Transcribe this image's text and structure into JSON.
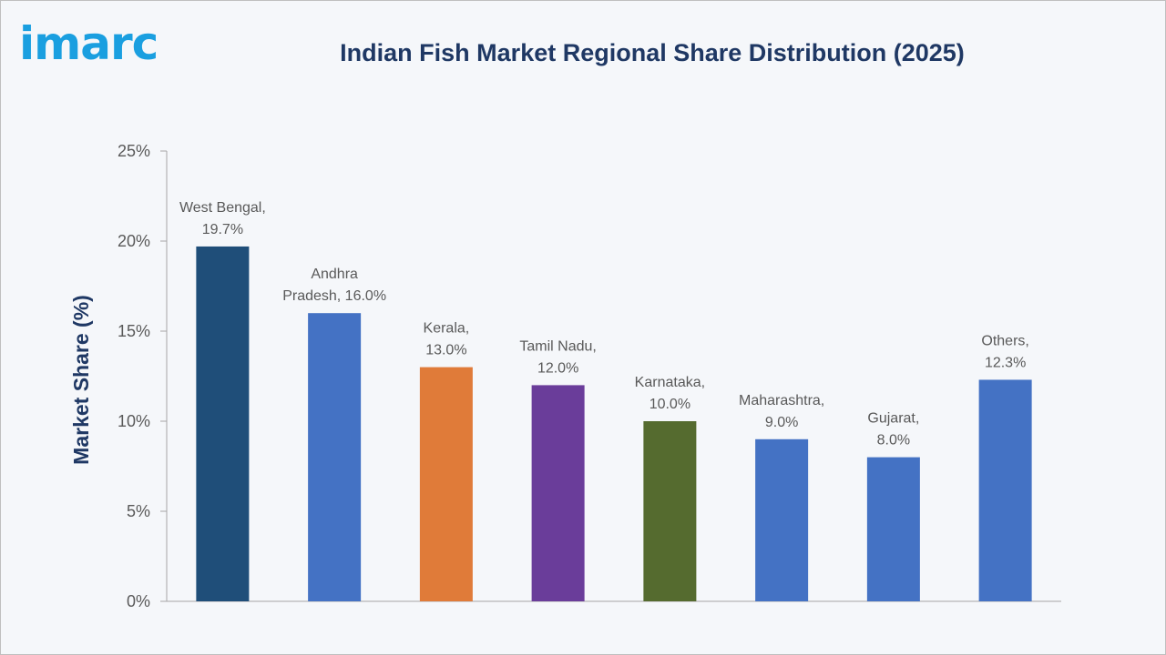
{
  "brand": {
    "logo_text": "imarc",
    "logo_color": "#1a9fe0"
  },
  "chart_data": {
    "type": "bar",
    "title": "Indian Fish Market Regional Share Distribution (2025)",
    "xlabel": "",
    "ylabel": "Market Share (%)",
    "ylim": [
      0,
      25
    ],
    "y_ticks": [
      0,
      5,
      10,
      15,
      20,
      25
    ],
    "y_tick_suffix": "%",
    "grid": false,
    "categories": [
      "West Bengal",
      "Andhra Pradesh",
      "Kerala",
      "Tamil Nadu",
      "Karnataka",
      "Maharashtra",
      "Gujarat",
      "Others"
    ],
    "values": [
      19.7,
      16.0,
      13.0,
      12.0,
      10.0,
      9.0,
      8.0,
      12.3
    ],
    "data_labels": [
      [
        "West Bengal,",
        "19.7%"
      ],
      [
        "Andhra",
        "Pradesh, 16.0%"
      ],
      [
        "Kerala,",
        "13.0%"
      ],
      [
        "Tamil Nadu,",
        "12.0%"
      ],
      [
        "Karnataka,",
        "10.0%"
      ],
      [
        "Maharashtra,",
        "9.0%"
      ],
      [
        "Gujarat,",
        "8.0%"
      ],
      [
        "Others,",
        "12.3%"
      ]
    ],
    "colors": [
      "#1f4e79",
      "#4472c4",
      "#e07b39",
      "#6a3d9a",
      "#556b2f",
      "#4472c4",
      "#4472c4",
      "#4472c4"
    ]
  }
}
